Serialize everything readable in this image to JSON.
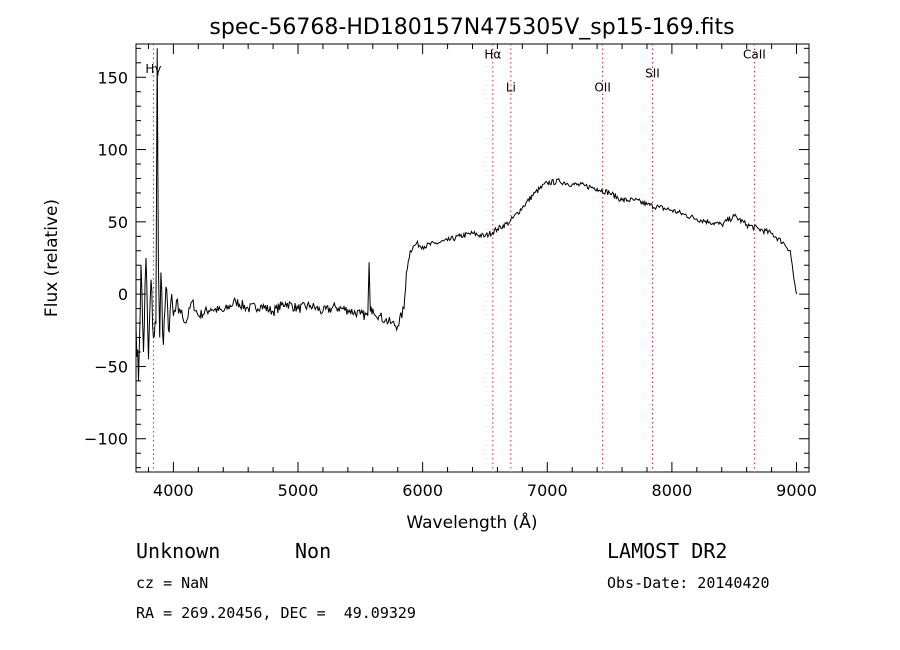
{
  "chart_data": {
    "type": "line",
    "title": "spec-56768-HD180157N475305V_sp15-169.fits",
    "xlabel": "Wavelength (Å)",
    "ylabel": "Flux (relative)",
    "xlim": [
      3700,
      9100
    ],
    "ylim": [
      -123,
      173
    ],
    "xticks": [
      4000,
      5000,
      6000,
      7000,
      8000,
      9000
    ],
    "yticks": [
      -100,
      -50,
      0,
      50,
      100,
      150
    ],
    "grid": false,
    "lines": [
      {
        "label": "Hγ",
        "x": 3840,
        "labelY": 153
      },
      {
        "label": "Hα",
        "x": 6563,
        "labelY": 163
      },
      {
        "label": "Li",
        "x": 6708,
        "labelY": 140
      },
      {
        "label": "OII",
        "x": 7444,
        "labelY": 140
      },
      {
        "label": "SII",
        "x": 7844,
        "labelY": 150
      },
      {
        "label": "CaII",
        "x": 8662,
        "labelY": 163
      }
    ],
    "series": [
      {
        "x": [
          3700,
          3720,
          3740,
          3760,
          3780,
          3800,
          3820,
          3840,
          3860,
          3870,
          3880,
          3890,
          3900,
          3920,
          3940,
          3960,
          3980,
          4000,
          4050,
          4100,
          4150,
          4200,
          4300,
          4400,
          4500,
          4600,
          4700,
          4800,
          4900,
          5000,
          5100,
          5200,
          5300,
          5400,
          5500,
          5560,
          5570,
          5580,
          5600,
          5650,
          5700,
          5750,
          5800,
          5850,
          5870,
          5900,
          5950,
          6000,
          6100,
          6200,
          6300,
          6400,
          6500,
          6600,
          6700,
          6800,
          6900,
          7000,
          7100,
          7200,
          7300,
          7400,
          7500,
          7600,
          7700,
          7800,
          7900,
          8000,
          8100,
          8200,
          8300,
          8400,
          8500,
          8600,
          8700,
          8800,
          8900,
          8950,
          8980,
          9000
        ],
        "y": [
          -20,
          -60,
          20,
          -40,
          25,
          -45,
          10,
          -30,
          -20,
          170,
          20,
          -30,
          15,
          -35,
          5,
          -25,
          -5,
          -15,
          -10,
          -20,
          -5,
          -15,
          -10,
          -12,
          -5,
          -10,
          -8,
          -12,
          -6,
          -10,
          -8,
          -12,
          -9,
          -11,
          -14,
          -15,
          22,
          -12,
          -10,
          -15,
          -18,
          -20,
          -22,
          -10,
          15,
          30,
          35,
          33,
          35,
          37,
          40,
          42,
          40,
          45,
          50,
          60,
          70,
          77,
          78,
          76,
          75,
          73,
          70,
          65,
          65,
          62,
          60,
          58,
          55,
          52,
          50,
          48,
          54,
          48,
          45,
          42,
          35,
          30,
          10,
          0
        ]
      }
    ]
  },
  "info": {
    "class": "Unknown",
    "subclass": "Non",
    "survey": "LAMOST DR2",
    "cz": "cz = NaN",
    "obsdate": "Obs-Date: 20140420",
    "coords": "RA = 269.20456, DEC =  49.09329"
  }
}
